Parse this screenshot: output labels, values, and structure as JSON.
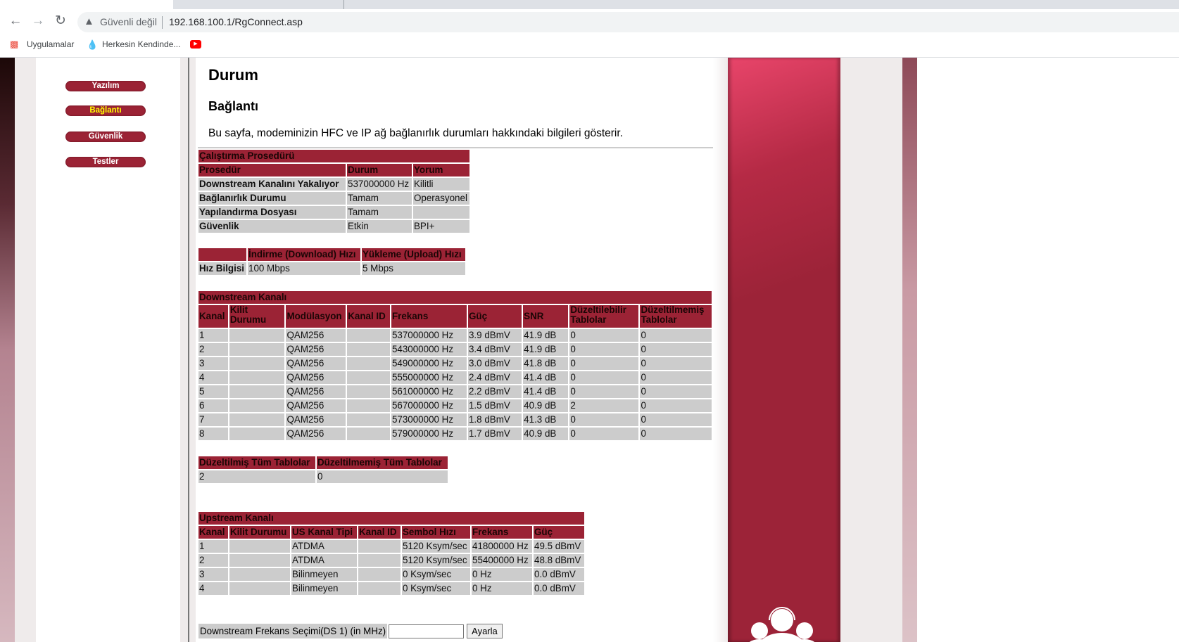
{
  "browser": {
    "security_label": "Güvenli değil",
    "url": "192.168.100.1/RgConnect.asp",
    "bookmarks": [
      {
        "label": "Uygulamalar",
        "icon": "apps-grid-icon"
      },
      {
        "label": "Herkesin Kendinde...",
        "icon": "water-drop-icon"
      },
      {
        "label": "",
        "icon": "youtube-icon"
      }
    ]
  },
  "sidebar": {
    "items": [
      {
        "label": "Yazılım",
        "active": false
      },
      {
        "label": "Bağlantı",
        "active": true
      },
      {
        "label": "Güvenlik",
        "active": false
      },
      {
        "label": "Testler",
        "active": false
      }
    ]
  },
  "main": {
    "title": "Durum",
    "subtitle": "Bağlantı",
    "description": "Bu sayfa, modeminizin HFC ve IP ağ bağlanırlık durumları hakkındaki bilgileri gösterir.",
    "startup": {
      "title": "Çalıştırma Prosedürü",
      "headers": [
        "Prosedür",
        "Durum",
        "Yorum"
      ],
      "rows": [
        [
          "Downstream Kanalını Yakalıyor",
          "537000000 Hz",
          "Kilitli"
        ],
        [
          "Bağlanırlık Durumu",
          "Tamam",
          "Operasyonel"
        ],
        [
          "Yapılandırma Dosyası",
          "Tamam",
          ""
        ],
        [
          "Güvenlik",
          "Etkin",
          "BPI+"
        ]
      ]
    },
    "speed": {
      "headers": [
        "",
        "İndirme (Download) Hızı",
        "Yükleme (Upload) Hızı"
      ],
      "row": [
        "Hız Bilgisi",
        "100 Mbps",
        "5 Mbps"
      ]
    },
    "downstream": {
      "title": "Downstream Kanalı",
      "headers": [
        "Kanal",
        "Kilit Durumu",
        "Modülasyon",
        "Kanal ID",
        "Frekans",
        "Güç",
        "SNR",
        "Düzeltilebilir Tablolar",
        "Düzeltilmemiş Tablolar"
      ],
      "rows": [
        [
          "1",
          "",
          "QAM256",
          "",
          "537000000 Hz",
          "3.9 dBmV",
          "41.9 dB",
          "0",
          "0"
        ],
        [
          "2",
          "",
          "QAM256",
          "",
          "543000000 Hz",
          "3.4 dBmV",
          "41.9 dB",
          "0",
          "0"
        ],
        [
          "3",
          "",
          "QAM256",
          "",
          "549000000 Hz",
          "3.0 dBmV",
          "41.8 dB",
          "0",
          "0"
        ],
        [
          "4",
          "",
          "QAM256",
          "",
          "555000000 Hz",
          "2.4 dBmV",
          "41.4 dB",
          "0",
          "0"
        ],
        [
          "5",
          "",
          "QAM256",
          "",
          "561000000 Hz",
          "2.2 dBmV",
          "41.4 dB",
          "0",
          "0"
        ],
        [
          "6",
          "",
          "QAM256",
          "",
          "567000000 Hz",
          "1.5 dBmV",
          "40.9 dB",
          "2",
          "0"
        ],
        [
          "7",
          "",
          "QAM256",
          "",
          "573000000 Hz",
          "1.8 dBmV",
          "41.3 dB",
          "0",
          "0"
        ],
        [
          "8",
          "",
          "QAM256",
          "",
          "579000000 Hz",
          "1.7 dBmV",
          "40.9 dB",
          "0",
          "0"
        ]
      ]
    },
    "totals": {
      "headers": [
        "Düzeltilmiş Tüm Tablolar",
        "Düzeltilmemiş Tüm Tablolar"
      ],
      "row": [
        "2",
        "0"
      ]
    },
    "upstream": {
      "title": "Upstream Kanalı",
      "headers": [
        "Kanal",
        "Kilit Durumu",
        "US Kanal Tipi",
        "Kanal ID",
        "Sembol Hızı",
        "Frekans",
        "Güç"
      ],
      "rows": [
        [
          "1",
          "",
          "ATDMA",
          "",
          "5120 Ksym/sec",
          "41800000 Hz",
          "49.5 dBmV"
        ],
        [
          "2",
          "",
          "ATDMA",
          "",
          "5120 Ksym/sec",
          "55400000 Hz",
          "48.8 dBmV"
        ],
        [
          "3",
          "",
          "Bilinmeyen",
          "",
          "0 Ksym/sec",
          "0 Hz",
          "0.0 dBmV"
        ],
        [
          "4",
          "",
          "Bilinmeyen",
          "",
          "0 Ksym/sec",
          "0 Hz",
          "0.0 dBmV"
        ]
      ]
    },
    "freq_form": {
      "label": "Downstream Frekans Seçimi(DS 1) (in MHz)",
      "value": "",
      "button": "Ayarla"
    }
  },
  "colors": {
    "accent": "#9b2335",
    "cell": "#cccccc",
    "active_nav": "#ffff00"
  }
}
